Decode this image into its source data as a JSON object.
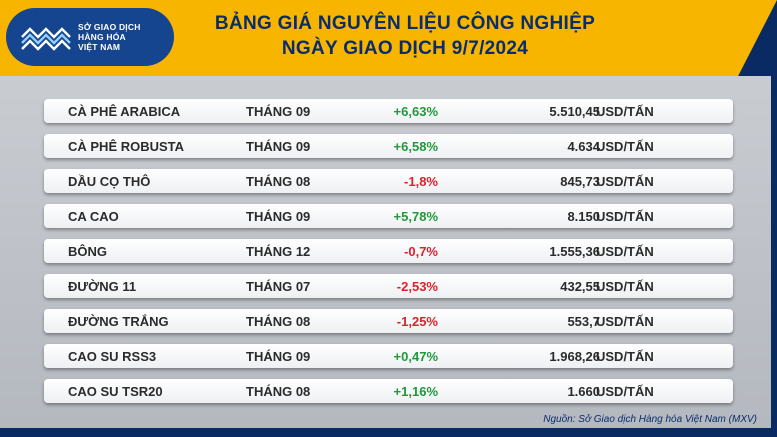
{
  "header": {
    "logo": {
      "line1": "SỞ GIAO DỊCH",
      "line2": "HÀNG HÓA",
      "line3": "VIỆT NAM"
    },
    "title_line1": "BẢNG GIÁ NGUYÊN LIỆU CÔNG NGHIỆP",
    "title_line2": "NGÀY GIAO DỊCH 9/7/2024"
  },
  "rows": [
    {
      "name": "CÀ PHÊ ARABICA",
      "month": "THÁNG 09",
      "change": "+6,63%",
      "price": "5.510,45",
      "unit": "USD/TẤN"
    },
    {
      "name": "CÀ PHÊ ROBUSTA",
      "month": "THÁNG 09",
      "change": "+6,58%",
      "price": "4.634",
      "unit": "USD/TẤN"
    },
    {
      "name": "DẦU CỌ THÔ",
      "month": "THÁNG 08",
      "change": "-1,8%",
      "price": "845,73",
      "unit": "USD/TẤN"
    },
    {
      "name": "CA CAO",
      "month": "THÁNG 09",
      "change": "+5,78%",
      "price": "8.150",
      "unit": "USD/TẤN"
    },
    {
      "name": "BÔNG",
      "month": "THÁNG 12",
      "change": "-0,7%",
      "price": "1.555,36",
      "unit": "USD/TẤN"
    },
    {
      "name": "ĐƯỜNG 11",
      "month": "THÁNG 07",
      "change": "-2,53%",
      "price": "432,55",
      "unit": "USD/TẤN"
    },
    {
      "name": "ĐƯỜNG TRẮNG",
      "month": "THÁNG 08",
      "change": "-1,25%",
      "price": "553,7",
      "unit": "USD/TẤN"
    },
    {
      "name": "CAO SU RSS3",
      "month": "THÁNG 09",
      "change": "+0,47%",
      "price": "1.968,26",
      "unit": "USD/TẤN"
    },
    {
      "name": "CAO SU TSR20",
      "month": "THÁNG 08",
      "change": "+1,16%",
      "price": "1.660",
      "unit": "USD/TẤN"
    }
  ],
  "source": "Nguồn: Sở Giao dịch Hàng hóa Việt Nam (MXV)",
  "colors": {
    "header_yellow": "#f7b500",
    "navy": "#0a2a63",
    "title": "#0b2c6b",
    "positive": "#1f9a3a",
    "negative": "#e11f2b"
  }
}
